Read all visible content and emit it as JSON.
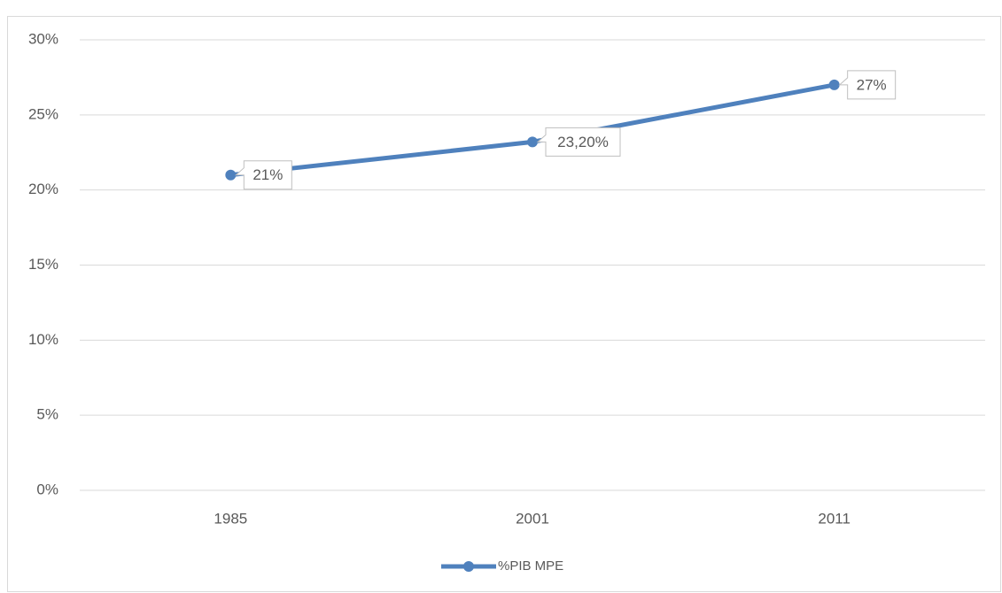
{
  "chart_data": {
    "type": "line",
    "categories": [
      "1985",
      "2001",
      "2011"
    ],
    "series": [
      {
        "name": "%PIB MPE",
        "color": "#4f81bd",
        "values": [
          21,
          23.2,
          27
        ],
        "value_labels": [
          "21%",
          "23,20%",
          "27%"
        ]
      }
    ],
    "ylim": [
      0,
      30
    ],
    "yticks": [
      {
        "value": 0,
        "label": "0%"
      },
      {
        "value": 5,
        "label": "5%"
      },
      {
        "value": 10,
        "label": "10%"
      },
      {
        "value": 15,
        "label": "15%"
      },
      {
        "value": 20,
        "label": "20%"
      },
      {
        "value": 25,
        "label": "25%"
      },
      {
        "value": 30,
        "label": "30%"
      }
    ],
    "grid": true,
    "legend": "bottom"
  }
}
